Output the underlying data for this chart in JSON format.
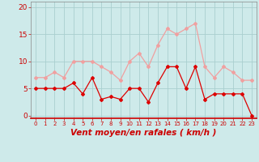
{
  "hours": [
    0,
    1,
    2,
    3,
    4,
    5,
    6,
    7,
    8,
    9,
    10,
    11,
    12,
    13,
    14,
    15,
    16,
    17,
    18,
    19,
    20,
    21,
    22,
    23
  ],
  "wind_mean": [
    5,
    5,
    5,
    5,
    6,
    4,
    7,
    3,
    3.5,
    3,
    5,
    5,
    2.5,
    6,
    9,
    9,
    5,
    9,
    3,
    4,
    4,
    4,
    4,
    0
  ],
  "wind_gust": [
    7,
    7,
    8,
    7,
    10,
    10,
    10,
    9,
    8,
    6.5,
    10,
    11.5,
    9,
    13,
    16,
    15,
    16,
    17,
    9,
    7,
    9,
    8,
    6.5,
    6.5
  ],
  "mean_color": "#dd0000",
  "gust_color": "#f0a0a0",
  "bg_color": "#ceeaea",
  "grid_color": "#aacfcf",
  "axis_label_color": "#cc0000",
  "tick_color": "#cc0000",
  "xlabel": "Vent moyen/en rafales ( km/h )",
  "ylim": [
    -0.5,
    21
  ],
  "yticks": [
    0,
    5,
    10,
    15,
    20
  ],
  "label_fontsize": 7.5
}
